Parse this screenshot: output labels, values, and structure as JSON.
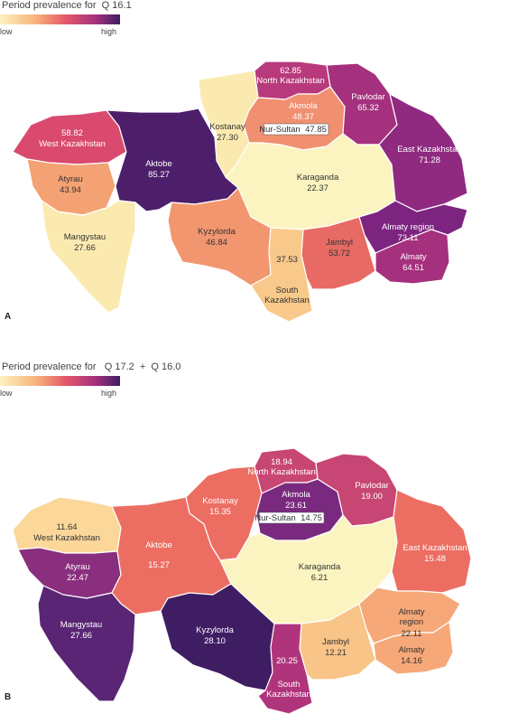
{
  "panel_a": {
    "title": "Period prevalence for  Q 16.1",
    "legend_low": "low",
    "legend_high": "high",
    "panel_label": "A",
    "regions": [
      {
        "name": "North Kazakhstan",
        "value": "62.85",
        "color": "#b83a7c"
      },
      {
        "name": "Pavlodar",
        "value": "65.32",
        "color": "#a5307e"
      },
      {
        "name": "Akmola",
        "value": "48.37",
        "color": "#f09070"
      },
      {
        "name": "Nur-Sultan",
        "value": "47.85",
        "color": "#f09070"
      },
      {
        "name": "Kostanay",
        "value": "27.30",
        "color": "#fbeab0"
      },
      {
        "name": "West Kazakhstan",
        "value": "58.82",
        "color": "#d94a6e"
      },
      {
        "name": "Atyrau",
        "value": "43.94",
        "color": "#f4a273"
      },
      {
        "name": "Aktobe",
        "value": "85.27",
        "color": "#4d1f6b"
      },
      {
        "name": "Karaganda",
        "value": "22.37",
        "color": "#fbf4c0"
      },
      {
        "name": "East Kazakhstan",
        "value": "71.28",
        "color": "#8f2a80"
      },
      {
        "name": "Mangystau",
        "value": "27.66",
        "color": "#fbeab0"
      },
      {
        "name": "Kyzylorda",
        "value": "46.84",
        "color": "#f2966f"
      },
      {
        "name": "South Kazakhstan",
        "value": "37.53",
        "color": "#f8c98a"
      },
      {
        "name": "Jambyl",
        "value": "53.72",
        "color": "#e86a64"
      },
      {
        "name": "Almaty region",
        "value": "73.11",
        "color": "#7c2480"
      },
      {
        "name": "Almaty",
        "value": "64.51",
        "color": "#a5307e"
      }
    ]
  },
  "panel_b": {
    "title": "Period prevalence for   Q 17.2  +  Q 16.0",
    "legend_low": "low",
    "legend_high": "high",
    "panel_label": "B",
    "regions": [
      {
        "name": "North Kazakhstan",
        "value": "18.94",
        "color": "#c84674"
      },
      {
        "name": "Pavlodar",
        "value": "19.00",
        "color": "#c84674"
      },
      {
        "name": "Akmola",
        "value": "23.61",
        "color": "#7a2a7e"
      },
      {
        "name": "Nur-Sultan",
        "value": "14.75",
        "color": "#ec6e62"
      },
      {
        "name": "Kostanay",
        "value": "15.35",
        "color": "#ec6e62"
      },
      {
        "name": "West Kazakhstan",
        "value": "11.64",
        "color": "#fbd79a"
      },
      {
        "name": "Atyrau",
        "value": "22.47",
        "color": "#8a2e7e"
      },
      {
        "name": "Aktobe",
        "value": "15.27",
        "color": "#ec6e62"
      },
      {
        "name": "Karaganda",
        "value": "6.21",
        "color": "#fbf4c0"
      },
      {
        "name": "East Kazakhstan",
        "value": "15.48",
        "color": "#ec6e62"
      },
      {
        "name": "Mangystau",
        "value": "27.66",
        "color": "#5a2574"
      },
      {
        "name": "Kyzylorda",
        "value": "28.10",
        "color": "#3f1d63"
      },
      {
        "name": "South Kazakhstan",
        "value": "20.25",
        "color": "#b0347c"
      },
      {
        "name": "Jambyl",
        "value": "12.21",
        "color": "#f8c487"
      },
      {
        "name": "Almaty region",
        "value": "22.11",
        "color": "#f6a878"
      },
      {
        "name": "Almaty",
        "value": "14.16",
        "color": "#f6a878"
      }
    ]
  }
}
